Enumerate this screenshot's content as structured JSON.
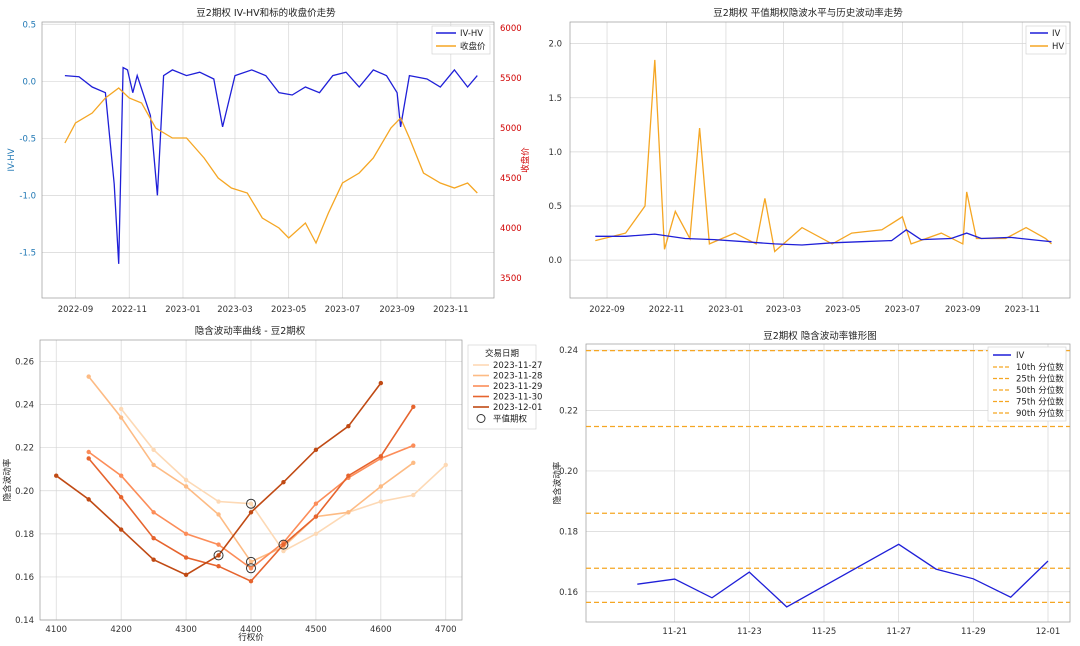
{
  "chart_data": [
    {
      "type": "line",
      "title": "豆2期权 IV-HV和标的收盘价走势",
      "xlabel": "",
      "ylabel": "IV-HV",
      "y2label": "收盘价",
      "ylim": [
        -1.9,
        0.52
      ],
      "y2lim": [
        3300,
        6060
      ],
      "x_ticks": [
        "2022-09",
        "2022-11",
        "2023-01",
        "2023-03",
        "2023-05",
        "2023-07",
        "2023-09",
        "2023-11"
      ],
      "y_ticks": [
        "0.5",
        "0.0",
        "-0.5",
        "-1.0",
        "-1.5"
      ],
      "y2_ticks": [
        "6000",
        "5500",
        "5000",
        "4500",
        "4000",
        "3500"
      ],
      "legend": [
        "IV-HV",
        "收盘价"
      ],
      "legend_position": "top-right",
      "series": [
        {
          "name": "IV-HV",
          "color": "#1f1fd8",
          "x": [
            "2022-08-20",
            "2022-09-05",
            "2022-09-20",
            "2022-10-05",
            "2022-10-15",
            "2022-10-20",
            "2022-10-25",
            "2022-10-30",
            "2022-11-05",
            "2022-11-10",
            "2022-11-25",
            "2022-12-03",
            "2022-12-10",
            "2022-12-20",
            "2023-01-05",
            "2023-01-20",
            "2023-02-05",
            "2023-02-15",
            "2023-03-01",
            "2023-03-20",
            "2023-04-05",
            "2023-04-20",
            "2023-05-05",
            "2023-05-20",
            "2023-06-05",
            "2023-06-20",
            "2023-07-05",
            "2023-07-20",
            "2023-08-05",
            "2023-08-20",
            "2023-09-01",
            "2023-09-05",
            "2023-09-15",
            "2023-10-05",
            "2023-10-20",
            "2023-11-05",
            "2023-11-20",
            "2023-12-01"
          ],
          "values": [
            0.05,
            0.04,
            -0.05,
            -0.1,
            -0.9,
            -1.6,
            0.12,
            0.1,
            -0.1,
            0.05,
            -0.3,
            -1.0,
            0.05,
            0.1,
            0.05,
            0.08,
            0.02,
            -0.4,
            0.05,
            0.1,
            0.05,
            -0.1,
            -0.12,
            -0.05,
            -0.1,
            0.05,
            0.08,
            -0.05,
            0.1,
            0.05,
            -0.1,
            -0.4,
            0.05,
            0.02,
            -0.05,
            0.1,
            -0.05,
            0.05
          ]
        },
        {
          "name": "收盘价",
          "color": "#f5a623",
          "x": [
            "2022-08-20",
            "2022-09-01",
            "2022-09-20",
            "2022-10-05",
            "2022-10-20",
            "2022-11-01",
            "2022-11-15",
            "2022-12-01",
            "2022-12-20",
            "2023-01-05",
            "2023-01-25",
            "2023-02-10",
            "2023-02-25",
            "2023-03-15",
            "2023-04-01",
            "2023-04-20",
            "2023-05-01",
            "2023-05-20",
            "2023-06-01",
            "2023-06-15",
            "2023-07-01",
            "2023-07-20",
            "2023-08-05",
            "2023-08-25",
            "2023-09-05",
            "2023-09-15",
            "2023-10-01",
            "2023-10-20",
            "2023-11-05",
            "2023-11-20",
            "2023-12-01"
          ],
          "values": [
            4850,
            5050,
            5150,
            5300,
            5400,
            5300,
            5250,
            5000,
            4900,
            4900,
            4700,
            4500,
            4400,
            4350,
            4100,
            4000,
            3900,
            4050,
            3850,
            4150,
            4450,
            4550,
            4700,
            5000,
            5100,
            4900,
            4550,
            4450,
            4400,
            4450,
            4350
          ]
        }
      ]
    },
    {
      "type": "line",
      "title": "豆2期权 平值期权隐波水平与历史波动率走势",
      "xlabel": "",
      "ylabel": "",
      "ylim": [
        -0.35,
        2.2
      ],
      "x_ticks": [
        "2022-09",
        "2022-11",
        "2023-01",
        "2023-03",
        "2023-05",
        "2023-07",
        "2023-09",
        "2023-11"
      ],
      "y_ticks": [
        "2.0",
        "1.5",
        "1.0",
        "0.5",
        "0.0"
      ],
      "legend": [
        "IV",
        "HV"
      ],
      "legend_position": "top-right",
      "series": [
        {
          "name": "IV",
          "color": "#1f1fd8",
          "x": [
            "2022-08-20",
            "2022-09-20",
            "2022-10-20",
            "2022-11-20",
            "2022-12-20",
            "2023-01-20",
            "2023-02-20",
            "2023-03-20",
            "2023-04-20",
            "2023-05-20",
            "2023-06-20",
            "2023-07-05",
            "2023-07-20",
            "2023-08-20",
            "2023-09-05",
            "2023-09-20",
            "2023-10-20",
            "2023-11-20",
            "2023-12-01"
          ],
          "values": [
            0.22,
            0.22,
            0.24,
            0.2,
            0.19,
            0.17,
            0.15,
            0.14,
            0.16,
            0.17,
            0.18,
            0.28,
            0.19,
            0.2,
            0.25,
            0.2,
            0.21,
            0.18,
            0.17
          ]
        },
        {
          "name": "HV",
          "color": "#f5a623",
          "x": [
            "2022-08-20",
            "2022-09-20",
            "2022-10-10",
            "2022-10-20",
            "2022-10-30",
            "2022-11-10",
            "2022-11-25",
            "2022-12-05",
            "2022-12-15",
            "2023-01-10",
            "2023-02-01",
            "2023-02-10",
            "2023-02-20",
            "2023-03-20",
            "2023-04-20",
            "2023-05-10",
            "2023-06-10",
            "2023-07-01",
            "2023-07-10",
            "2023-08-10",
            "2023-09-01",
            "2023-09-05",
            "2023-09-15",
            "2023-10-15",
            "2023-11-05",
            "2023-11-25",
            "2023-12-01"
          ],
          "values": [
            0.18,
            0.25,
            0.5,
            1.85,
            0.1,
            0.45,
            0.2,
            1.22,
            0.15,
            0.25,
            0.15,
            0.57,
            0.08,
            0.3,
            0.15,
            0.25,
            0.28,
            0.4,
            0.15,
            0.25,
            0.15,
            0.63,
            0.2,
            0.2,
            0.3,
            0.2,
            0.15
          ]
        }
      ]
    },
    {
      "type": "line",
      "title": "隐含波动率曲线 - 豆2期权",
      "xlabel": "行权价",
      "ylabel": "隐含波动率",
      "xlim": [
        4075,
        4725
      ],
      "ylim": [
        0.14,
        0.27
      ],
      "x_ticks": [
        "4100",
        "4200",
        "4300",
        "4400",
        "4500",
        "4600",
        "4700"
      ],
      "y_ticks": [
        "0.26",
        "0.24",
        "0.22",
        "0.20",
        "0.18",
        "0.16",
        "0.14"
      ],
      "legend_title": "交易日期",
      "legend_position": "upper right, outside",
      "atm_label": "平值期权",
      "series": [
        {
          "name": "2023-11-27",
          "color": "#fdd9b5",
          "x": [
            4200,
            4250,
            4300,
            4350,
            4400,
            4450,
            4500,
            4550,
            4600,
            4650,
            4700
          ],
          "values": [
            0.238,
            0.219,
            0.205,
            0.195,
            0.194,
            0.172,
            0.18,
            0.19,
            0.195,
            0.198,
            0.212
          ],
          "atm": 4400
        },
        {
          "name": "2023-11-28",
          "color": "#fdbb84",
          "x": [
            4150,
            4200,
            4250,
            4300,
            4350,
            4400,
            4450,
            4500,
            4550,
            4600,
            4650
          ],
          "values": [
            0.253,
            0.234,
            0.212,
            0.202,
            0.189,
            0.167,
            0.174,
            0.188,
            0.19,
            0.202,
            0.213
          ],
          "atm": 4400
        },
        {
          "name": "2023-11-29",
          "color": "#fc8d59",
          "x": [
            4150,
            4200,
            4250,
            4300,
            4350,
            4400,
            4450,
            4500,
            4550,
            4600,
            4650
          ],
          "values": [
            0.218,
            0.207,
            0.19,
            0.18,
            0.175,
            0.164,
            0.176,
            0.194,
            0.206,
            0.215,
            0.221
          ],
          "atm": 4400
        },
        {
          "name": "2023-11-30",
          "color": "#e6642e",
          "x": [
            4150,
            4200,
            4250,
            4300,
            4350,
            4400,
            4450,
            4500,
            4550,
            4600,
            4650
          ],
          "values": [
            0.215,
            0.197,
            0.178,
            0.169,
            0.165,
            0.158,
            0.175,
            0.188,
            0.207,
            0.216,
            0.239
          ],
          "atm": 4450
        },
        {
          "name": "2023-12-01",
          "color": "#c04a14",
          "x": [
            4100,
            4150,
            4200,
            4250,
            4300,
            4350,
            4400,
            4450,
            4500,
            4550,
            4600
          ],
          "values": [
            0.207,
            0.196,
            0.182,
            0.168,
            0.161,
            0.17,
            0.19,
            0.204,
            0.219,
            0.23,
            0.25
          ],
          "atm": 4350
        }
      ]
    },
    {
      "type": "line",
      "title": "豆2期权 隐含波动率锥形图",
      "xlabel": "",
      "ylabel": "隐含波动率",
      "xlim": [
        "2023-11-19",
        "2023-12-01"
      ],
      "ylim": [
        0.15,
        0.242
      ],
      "x_ticks": [
        "11-21",
        "11-23",
        "11-25",
        "11-27",
        "11-29",
        "12-01"
      ],
      "y_ticks": [
        "0.24",
        "0.22",
        "0.20",
        "0.18",
        "0.16"
      ],
      "legend_position": "top-right",
      "series": [
        {
          "name": "IV",
          "color": "#1f1fd8",
          "x": [
            "2023-11-20",
            "2023-11-21",
            "2023-11-22",
            "2023-11-23",
            "2023-11-24",
            "2023-11-27",
            "2023-11-28",
            "2023-11-29",
            "2023-11-30",
            "2023-12-01"
          ],
          "values": [
            0.1625,
            0.1642,
            0.158,
            0.1665,
            0.155,
            0.1757,
            0.1675,
            0.1643,
            0.1582,
            0.1702
          ]
        }
      ],
      "hlines": [
        {
          "name": "10th 分位数",
          "value": 0.1565,
          "color": "#f5a623"
        },
        {
          "name": "25th 分位数",
          "value": 0.1678,
          "color": "#f5a623"
        },
        {
          "name": "50th 分位数",
          "value": 0.186,
          "color": "#f5a623"
        },
        {
          "name": "75th 分位数",
          "value": 0.2147,
          "color": "#f5a623"
        },
        {
          "name": "90th 分位数",
          "value": 0.2398,
          "color": "#f5a623"
        }
      ]
    }
  ]
}
